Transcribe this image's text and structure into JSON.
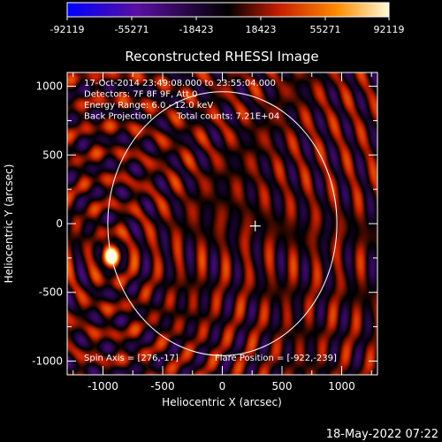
{
  "colorbar": {
    "ticks": [
      "-92119",
      "-55271",
      "-18423",
      "18423",
      "55271",
      "92119"
    ]
  },
  "footer": {
    "timestamp": "18-May-2022 07:22"
  },
  "chart_data": {
    "type": "heatmap",
    "title": "Reconstructed RHESSI Image",
    "xlabel": "Heliocentric X (arcsec)",
    "ylabel": "Heliocentric Y (arcsec)",
    "xlim": [
      -1300,
      1300
    ],
    "ylim": [
      -1100,
      1100
    ],
    "xticks": [
      -1000,
      -500,
      0,
      500,
      1000
    ],
    "xtick_labels": [
      "-1000",
      "-500",
      "0",
      "500",
      "1000"
    ],
    "yticks": [
      -1000,
      -500,
      0,
      500,
      1000
    ],
    "ytick_labels": [
      "-1000",
      "-500",
      "0",
      "500",
      "1000"
    ],
    "colorbar_range": [
      -92119,
      92119
    ],
    "info_lines": [
      "17-Oct-2014 23:49:08.000 to 23:55:04.000",
      "Detectors: 7F 8F 9F, Att 0",
      "Energy Range: 6.0 - 12.0 keV",
      "Back Projection",
      "Total counts: 7.21E+04"
    ],
    "spin_axis": "Spin Axis = [276,-17]",
    "flare_position_label": "Flare Position = [-922,-239]",
    "flare_position": [
      -922,
      -239
    ],
    "spin_axis_marker": [
      276,
      -17
    ],
    "solar_disk": {
      "center": [
        0,
        0
      ],
      "radius": 960
    },
    "colors": {
      "background": "#000000",
      "axes": "#ffffff",
      "colormap": [
        "#0000ff",
        "#5a0fa0",
        "#000000",
        "#c81e00",
        "#ff8c00",
        "#fff8a0"
      ]
    }
  }
}
